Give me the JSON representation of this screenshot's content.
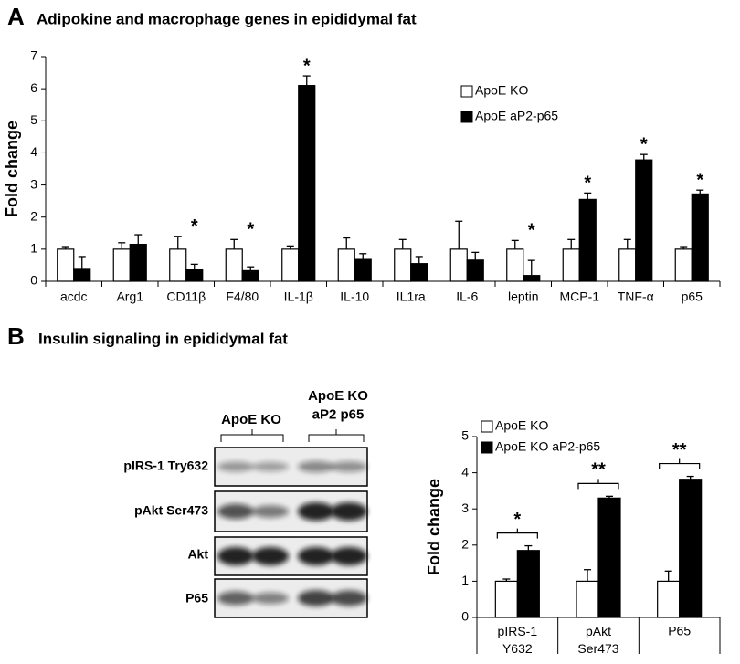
{
  "panels": [
    {
      "letter": "A",
      "title": "Adipokine and macrophage genes in epididymal fat"
    },
    {
      "letter": "B",
      "title": "Insulin signaling in epididymal fat"
    }
  ],
  "blot": {
    "groups": [
      "ApoE KO",
      "ApoE KO\naP2 p65"
    ],
    "rows": [
      "pIRS-1 Try632",
      "pAkt Ser473",
      "Akt",
      "P65"
    ]
  },
  "chart_data": [
    {
      "type": "bar",
      "y_label": "Fold change",
      "categories": [
        "acdc",
        "Arg1",
        "CD11β",
        "F4/80",
        "IL-1β",
        "IL-10",
        "IL1ra",
        "IL-6",
        "leptin",
        "MCP-1",
        "TNF-α",
        "p65"
      ],
      "series": [
        {
          "name": "ApoE KO",
          "color": "#ffffff",
          "values": [
            1,
            1,
            1,
            1,
            1,
            1,
            1,
            1,
            1,
            1,
            1,
            1
          ],
          "errors": [
            0.08,
            0.2,
            0.4,
            0.3,
            0.1,
            0.35,
            0.3,
            0.87,
            0.27,
            0.3,
            0.3,
            0.08
          ]
        },
        {
          "name": "ApoE aP2-p65",
          "color": "#000000",
          "values": [
            0.4,
            1.15,
            0.38,
            0.33,
            6.1,
            0.68,
            0.55,
            0.66,
            0.18,
            2.55,
            3.78,
            2.72
          ],
          "errors": [
            0.37,
            0.3,
            0.15,
            0.12,
            0.3,
            0.18,
            0.22,
            0.24,
            0.47,
            0.2,
            0.17,
            0.12
          ]
        }
      ],
      "significance": [
        null,
        null,
        "*",
        "*",
        "*",
        null,
        null,
        null,
        "*",
        "*",
        "*",
        "*"
      ],
      "ylim": [
        0,
        7
      ],
      "yticks": [
        0,
        1,
        2,
        3,
        4,
        5,
        6,
        7
      ]
    },
    {
      "type": "bar",
      "y_label": "Fold change",
      "categories": [
        "pIRS-1\nY632",
        "pAkt\nSer473",
        "P65"
      ],
      "series": [
        {
          "name": "ApoE KO",
          "color": "#ffffff",
          "values": [
            1,
            1,
            1
          ],
          "errors": [
            0.06,
            0.32,
            0.28
          ]
        },
        {
          "name": "ApoE KO aP2-p65",
          "color": "#000000",
          "values": [
            1.85,
            3.3,
            3.82
          ],
          "errors": [
            0.13,
            0.05,
            0.08
          ]
        }
      ],
      "significance": [
        "*",
        "**",
        "**"
      ],
      "ylim": [
        0,
        5
      ],
      "yticks": [
        0,
        1,
        2,
        3,
        4,
        5
      ]
    }
  ]
}
